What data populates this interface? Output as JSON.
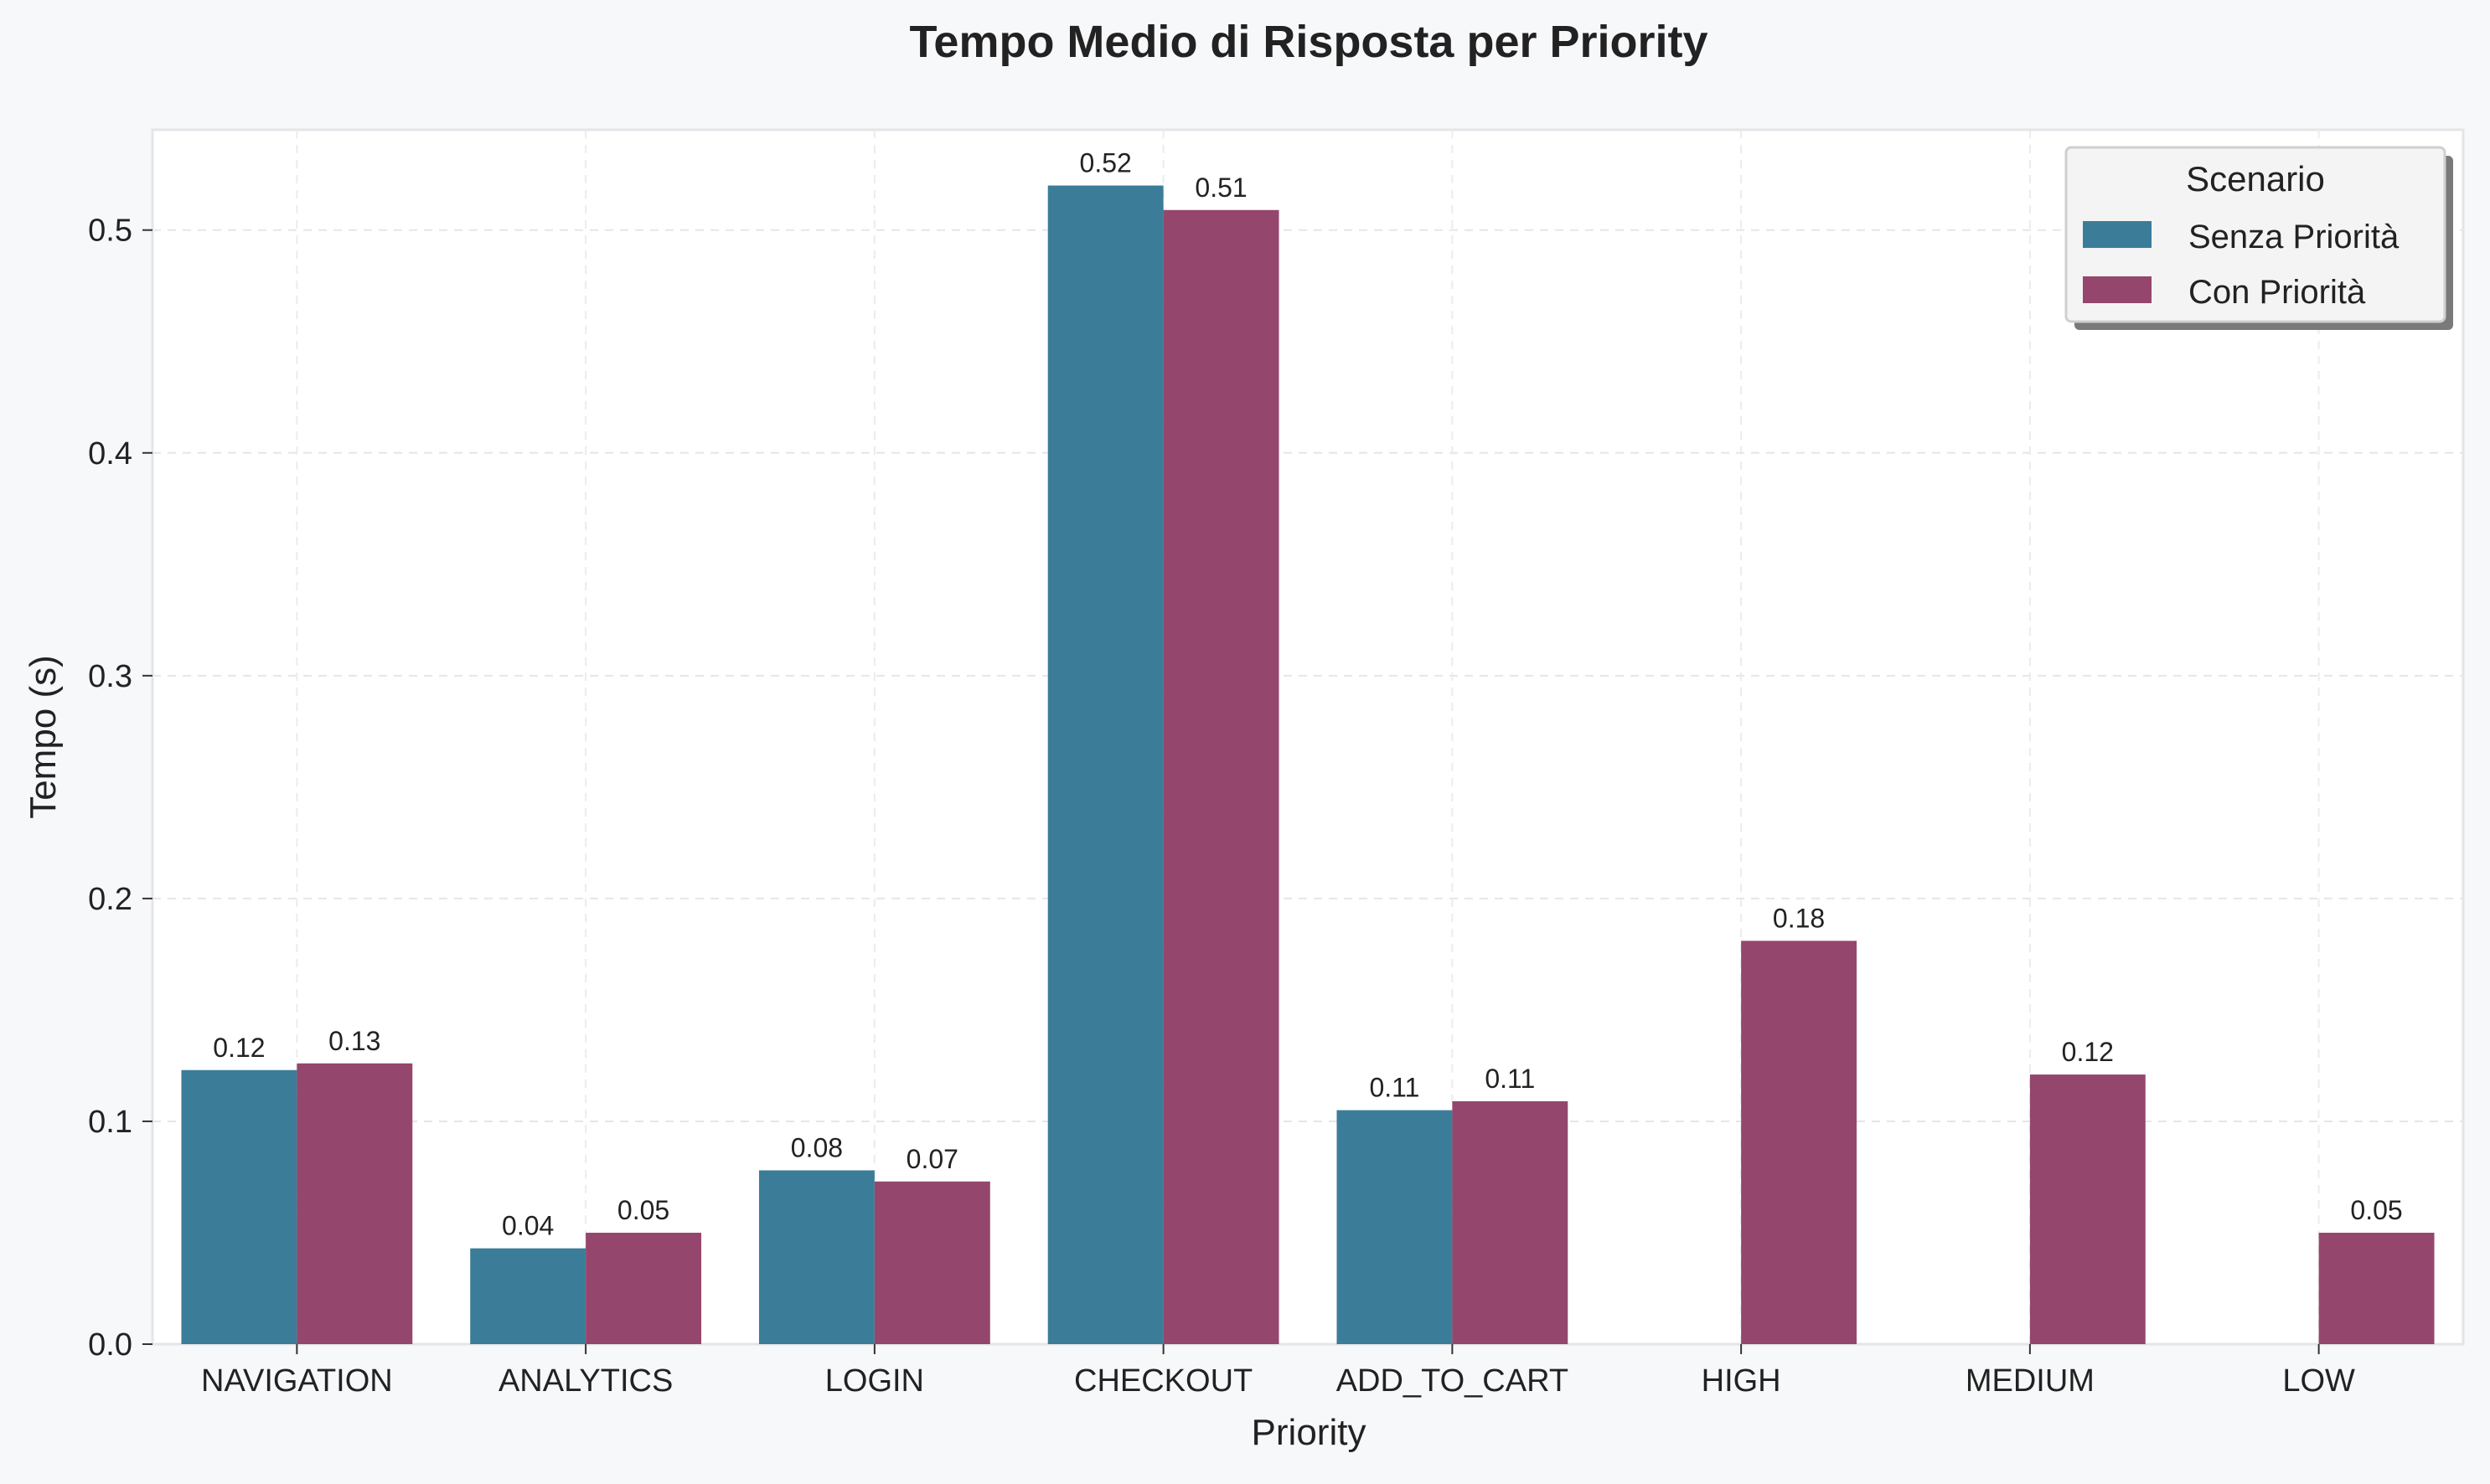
{
  "chart_data": {
    "type": "bar",
    "title": "Tempo Medio di Risposta per Priority",
    "xlabel": "Priority",
    "ylabel": "Tempo (s)",
    "ylim": [
      0,
      0.545
    ],
    "yticks": [
      "0.0",
      "0.1",
      "0.2",
      "0.3",
      "0.4",
      "0.5"
    ],
    "ytick_values": [
      0.0,
      0.1,
      0.2,
      0.3,
      0.4,
      0.5
    ],
    "grid": true,
    "categories": [
      "NAVIGATION",
      "ANALYTICS",
      "LOGIN",
      "CHECKOUT",
      "ADD_TO_CART",
      "HIGH",
      "MEDIUM",
      "LOW"
    ],
    "series": [
      {
        "name": "Senza Priorità",
        "color": "#3b7d99",
        "values": [
          0.123,
          0.043,
          0.078,
          0.52,
          0.105,
          null,
          null,
          null
        ],
        "labels": [
          "0.12",
          "0.04",
          "0.08",
          "0.52",
          "0.11",
          null,
          null,
          null
        ]
      },
      {
        "name": "Con Priorità",
        "color": "#94466c",
        "values": [
          0.126,
          0.05,
          0.073,
          0.509,
          0.109,
          0.181,
          0.121,
          0.05
        ],
        "labels": [
          "0.13",
          "0.05",
          "0.07",
          "0.51",
          "0.11",
          "0.18",
          "0.12",
          "0.05"
        ]
      }
    ],
    "legend": {
      "title": "Scenario",
      "position": "top-right"
    }
  }
}
